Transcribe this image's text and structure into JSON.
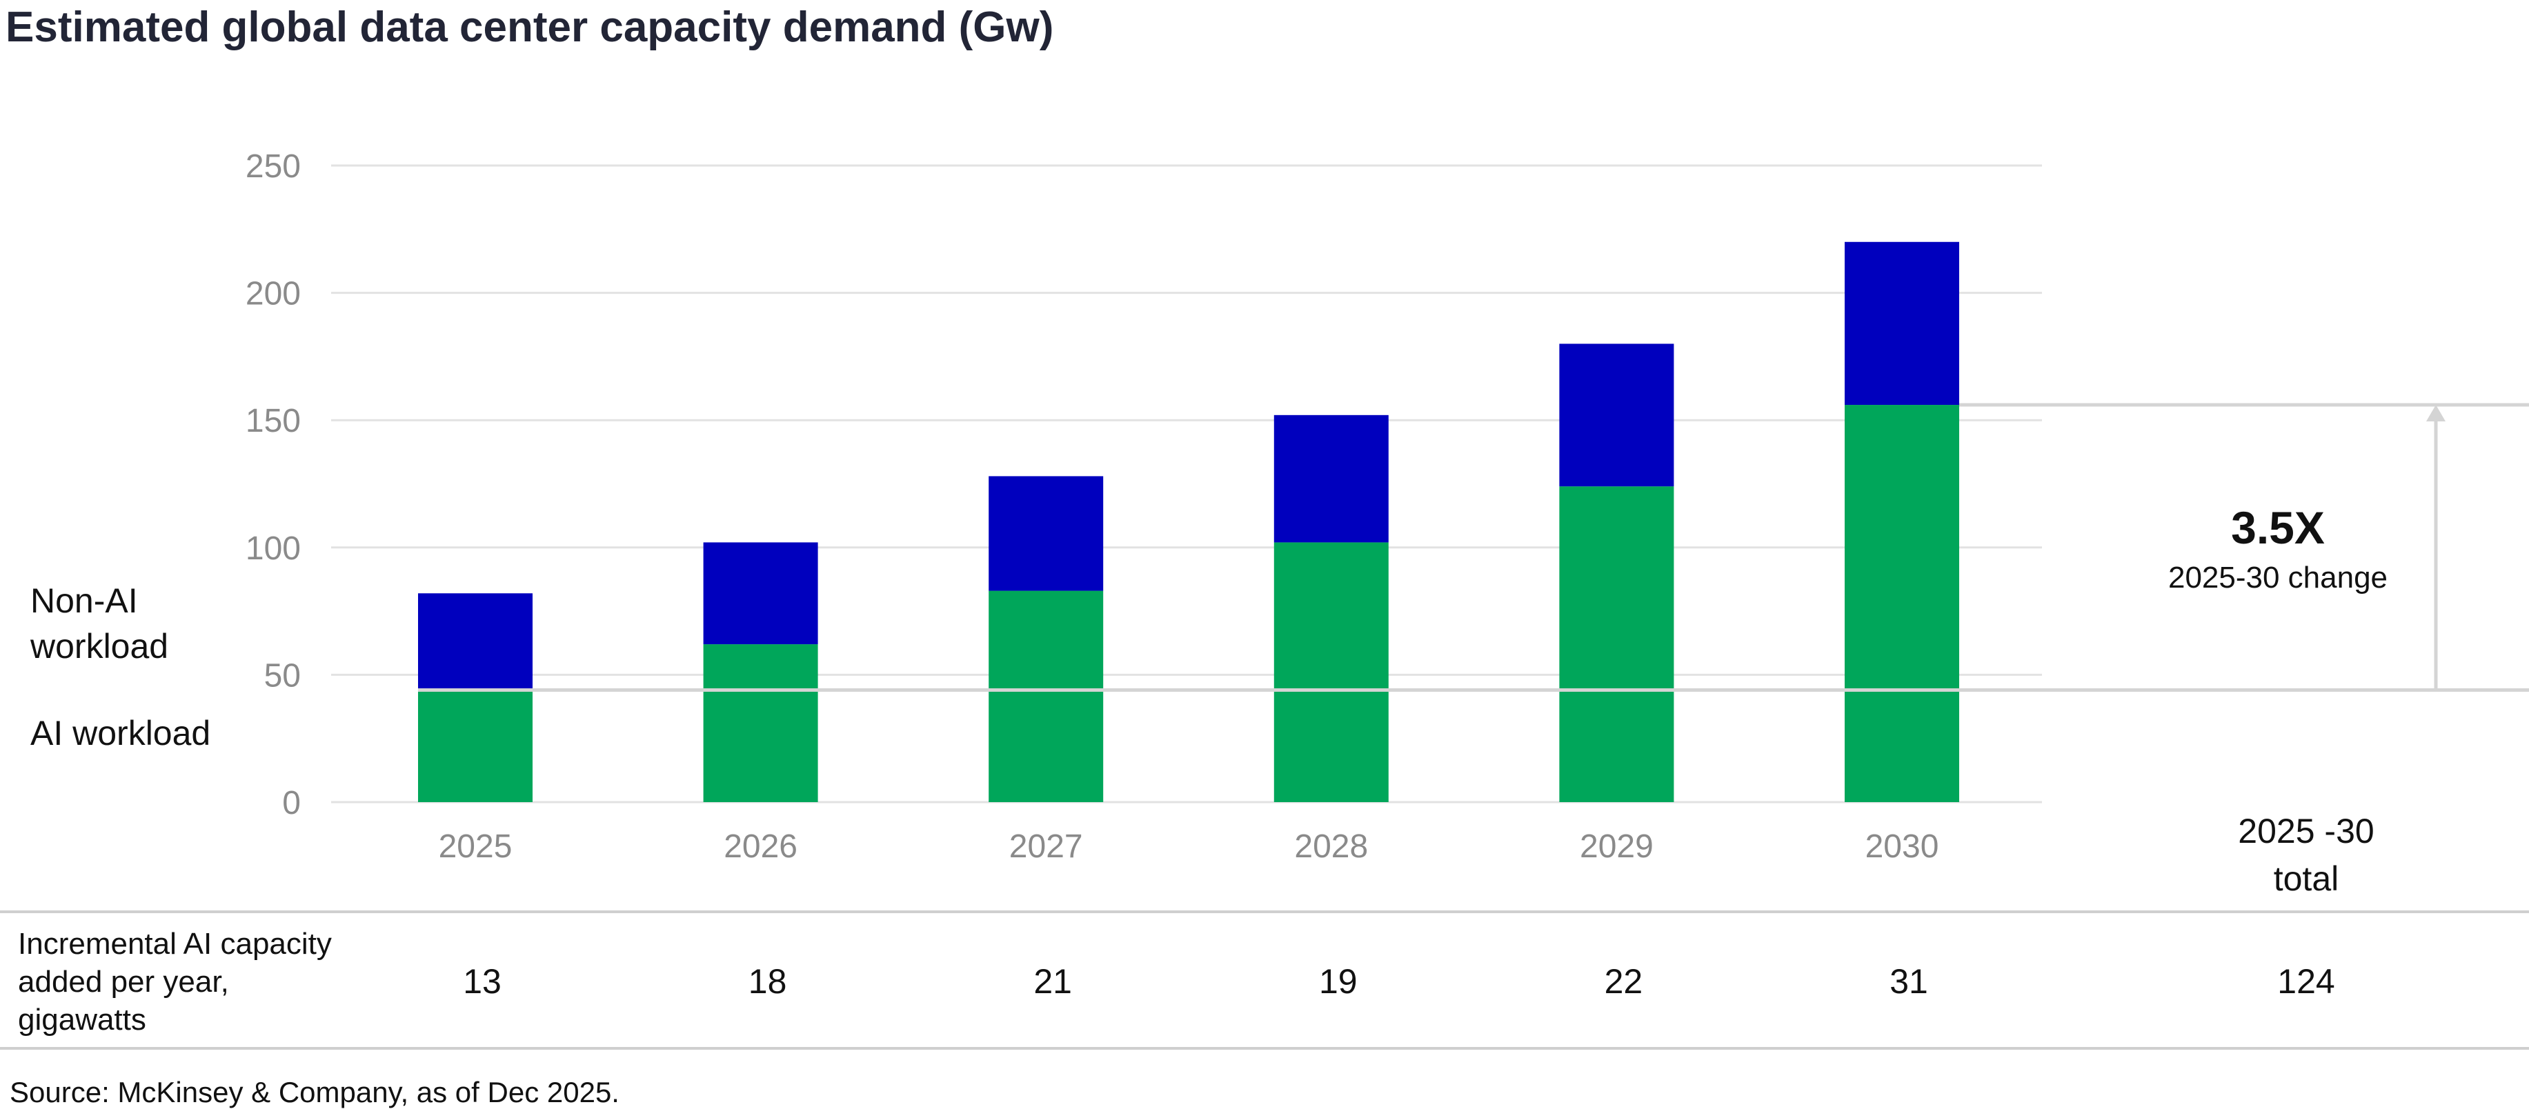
{
  "chart_data": {
    "type": "bar",
    "stacked": true,
    "title": "Estimated global data center capacity demand (Gw)",
    "categories": [
      "2025",
      "2026",
      "2027",
      "2028",
      "2029",
      "2030"
    ],
    "series": [
      {
        "name": "AI workload",
        "values": [
          44,
          62,
          83,
          102,
          124,
          156
        ],
        "color": "#00A65A"
      },
      {
        "name": "Non-AI workload",
        "values": [
          38,
          40,
          45,
          50,
          56,
          64
        ],
        "color": "#0000BE"
      }
    ],
    "ylim": [
      0,
      250
    ],
    "yticks": [
      0,
      50,
      100,
      150,
      200,
      250
    ],
    "grid": true,
    "legend_position": "left",
    "annotation": {
      "value": "3.5X",
      "label": "2025-30 change",
      "from": 44,
      "to": 156
    },
    "table": {
      "row_label_lines": [
        "Incremental AI capacity",
        "added per year,",
        "gigawatts"
      ],
      "values": [
        "13",
        "18",
        "21",
        "19",
        "22",
        "31"
      ],
      "total_header_lines": [
        "2025 -30",
        "total"
      ],
      "total_value": "124"
    },
    "source": "Source: McKinsey & Company, as of Dec 2025."
  }
}
